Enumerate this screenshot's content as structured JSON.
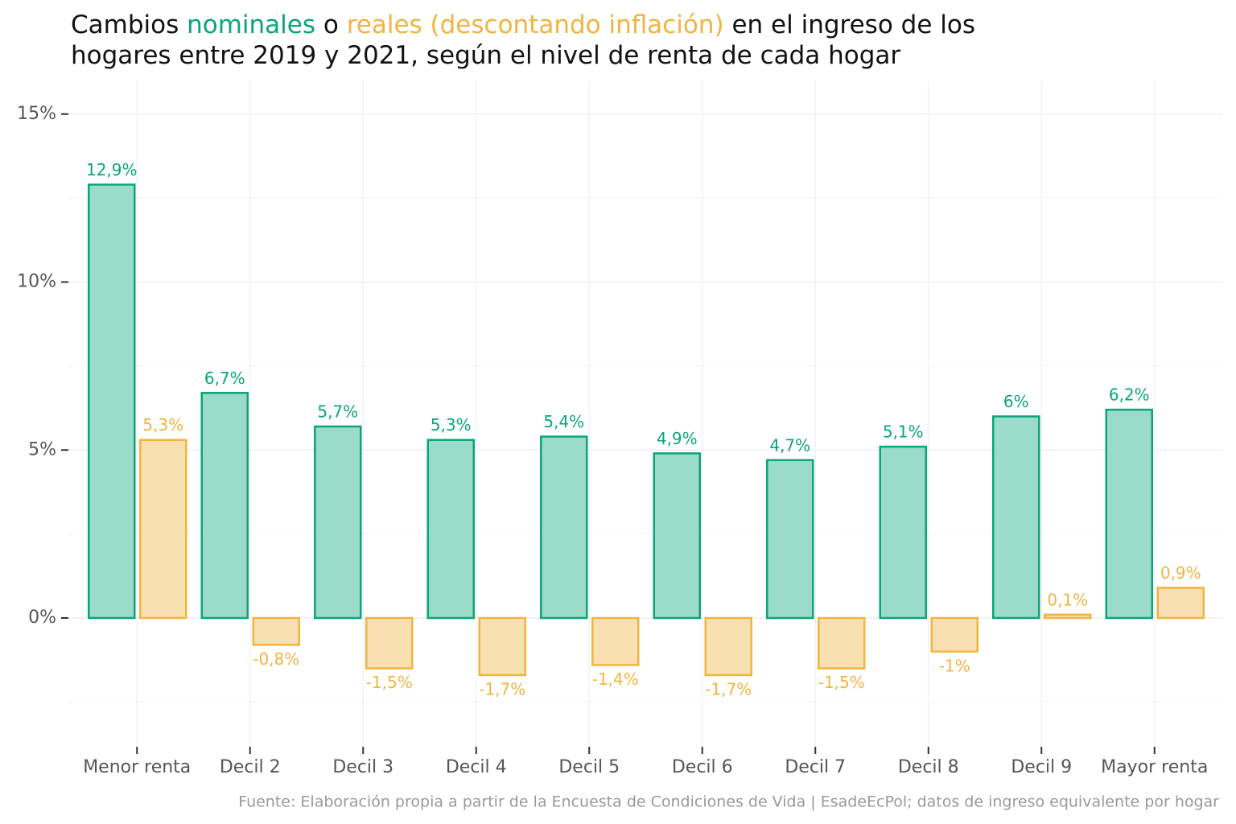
{
  "chart_data": {
    "type": "bar",
    "title": {
      "prefix": "Cambios",
      "joiner": "o",
      "line1_end": "en el ingreso de los",
      "line2": "hogares entre 2019 y 2021, según el nivel de renta de cada hogar"
    },
    "caption": "Fuente: Elaboración propia a partir de la Encuesta de Condiciones de Vida | EsadeEcPol; datos de ingreso equivalente por hogar",
    "categories": [
      "Menor renta",
      "Decil 2",
      "Decil 3",
      "Decil 4",
      "Decil 5",
      "Decil 6",
      "Decil 7",
      "Decil 8",
      "Decil 9",
      "Mayor renta"
    ],
    "series": [
      {
        "name": "nominales",
        "color": "#0aa57a",
        "fill": "#9adbc9",
        "values": [
          12.9,
          6.7,
          5.7,
          5.3,
          5.4,
          4.9,
          4.7,
          5.1,
          6,
          6.2
        ],
        "value_labels": [
          "12,9%",
          "6,7%",
          "5,7%",
          "5,3%",
          "5,4%",
          "4,9%",
          "4,7%",
          "5,1%",
          "6%",
          "6,2%"
        ]
      },
      {
        "name": "reales (descontando inflación)",
        "color": "#f0b440",
        "fill": "#f9e0b0",
        "values": [
          5.3,
          -0.8,
          -1.5,
          -1.7,
          -1.4,
          -1.7,
          -1.5,
          -1,
          0.1,
          0.9
        ],
        "value_labels": [
          "5,3%",
          "-0,8%",
          "-1,5%",
          "-1,7%",
          "-1,4%",
          "-1,7%",
          "-1,5%",
          "-1%",
          "0,1%",
          "0,9%"
        ]
      }
    ],
    "ylim": [
      -4,
      16
    ],
    "yticks": [
      {
        "value": 0,
        "label": "0%"
      },
      {
        "value": 5,
        "label": "5%"
      },
      {
        "value": 10,
        "label": "10%"
      },
      {
        "value": 15,
        "label": "15%"
      }
    ],
    "minor_yticks": [
      -2.5,
      2.5,
      7.5,
      12.5
    ],
    "grid": true
  }
}
